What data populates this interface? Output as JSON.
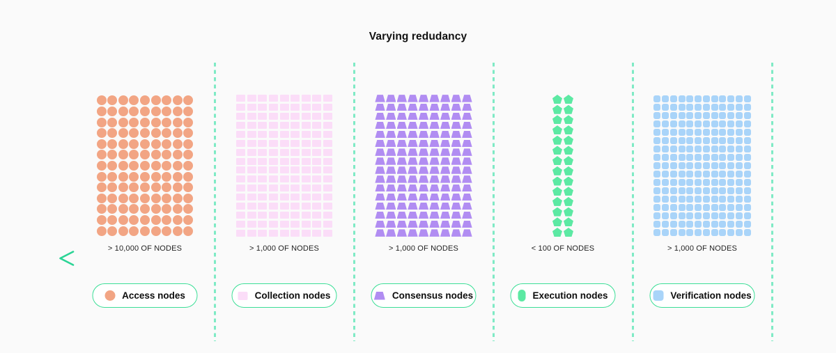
{
  "title": "Varying redudancy",
  "colors": {
    "background": "#FAFAFA",
    "divider": "#7FEAC5",
    "pill_border": "#3BDE96",
    "text_dark": "#111111"
  },
  "arrow": {
    "direction": "left",
    "gradient_start": "#2BD495",
    "gradient_end": "#0B7A52"
  },
  "groups": [
    {
      "id": "access",
      "count_label": "> 10,000 OF NODES",
      "legend_label": "Access nodes",
      "shape": "circle",
      "color": "#F2A584",
      "grid": {
        "columns": 9,
        "rows": 13
      }
    },
    {
      "id": "collection",
      "count_label": "> 1,000 OF NODES",
      "legend_label": "Collection nodes",
      "shape": "rect",
      "color": "#FBDDF8",
      "grid": {
        "columns": 9,
        "rows": 16
      }
    },
    {
      "id": "consensus",
      "count_label": "> 1,000 OF NODES",
      "legend_label": "Consensus nodes",
      "shape": "trapezoid",
      "color": "#B18DF2",
      "grid": {
        "columns": 9,
        "rows": 16
      }
    },
    {
      "id": "execution",
      "count_label": "< 100 OF NODES",
      "legend_label": "Execution nodes",
      "shape": "pentagon",
      "color": "#5CE9A3",
      "grid": {
        "columns": 2,
        "rows": 14
      }
    },
    {
      "id": "verification",
      "count_label": "> 1,000 OF NODES",
      "legend_label": "Verification nodes",
      "shape": "rounded-square",
      "color": "#A9D4F9",
      "grid": {
        "columns": 12,
        "rows": 17
      }
    }
  ]
}
